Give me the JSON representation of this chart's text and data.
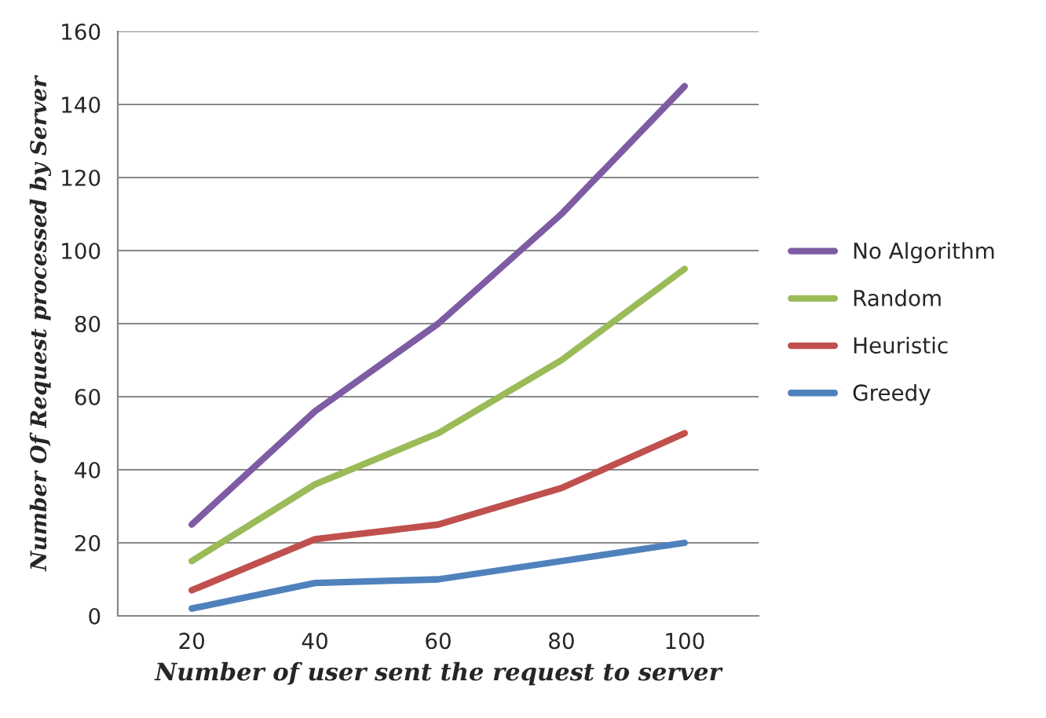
{
  "chart_data": {
    "type": "line",
    "xlabel": "Number of user sent the request to server",
    "ylabel": "Number Of Request processed by Server",
    "categories": [
      "20",
      "40",
      "60",
      "80",
      "100"
    ],
    "series": [
      {
        "name": "No Algorithm",
        "color": "#7e5ca3",
        "values": [
          25,
          56,
          80,
          110,
          145
        ]
      },
      {
        "name": "Random",
        "color": "#9bbb59",
        "values": [
          15,
          36,
          50,
          70,
          95
        ]
      },
      {
        "name": "Heuristic",
        "color": "#c0504d",
        "values": [
          7,
          21,
          25,
          35,
          50
        ]
      },
      {
        "name": "Greedy",
        "color": "#4f81bd",
        "values": [
          2,
          9,
          10,
          15,
          20
        ]
      }
    ],
    "ylim": [
      0,
      160
    ],
    "yticks": [
      0,
      20,
      40,
      60,
      80,
      100,
      120,
      140,
      160
    ],
    "grid": "y",
    "legend": "right",
    "marker": "none",
    "line_style": "solid"
  }
}
